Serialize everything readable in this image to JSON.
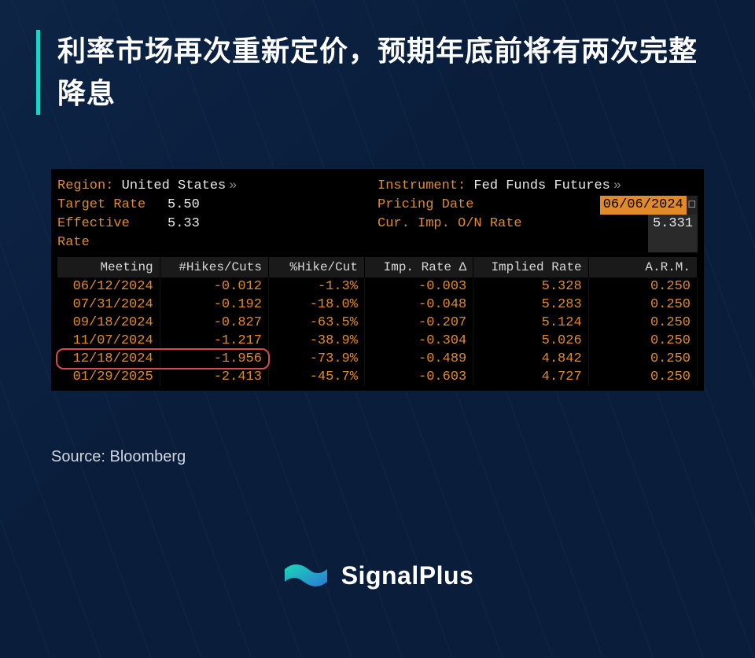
{
  "title": "利率市场再次重新定价，预期年底前将有两次完整降息",
  "source": "Source: Bloomberg",
  "brand": "SignalPlus",
  "colors": {
    "page_bg": "#0a1e3c",
    "accent_border": "#1dd3c4",
    "terminal_bg": "#000000",
    "terminal_label": "#e08a2a",
    "terminal_value": "#e8e8e8",
    "table_header_bg": "#1a1a1a",
    "table_header_fg": "#d8d8d8",
    "table_cell_fg": "#e08a2a",
    "highlight_border": "#d84a4a",
    "logo_grad_from": "#1bd8b5",
    "logo_grad_to": "#2a7ad6"
  },
  "terminal": {
    "region_label": "Region:",
    "region_value": "United States",
    "instrument_label": "Instrument:",
    "instrument_value": "Fed Funds Futures",
    "target_rate_label": "Target Rate",
    "target_rate_value": "5.50",
    "pricing_date_label": "Pricing Date",
    "pricing_date_value": "06/06/2024",
    "effective_rate_label": "Effective Rate",
    "effective_rate_value": "5.33",
    "cur_imp_label": "Cur. Imp. O/N Rate",
    "cur_imp_value": "5.331",
    "columns": [
      "Meeting",
      "#Hikes/Cuts",
      "%Hike/Cut",
      "Imp. Rate Δ",
      "Implied Rate",
      "A.R.M."
    ],
    "rows": [
      {
        "meeting": "06/12/2024",
        "hikes": "-0.012",
        "pct": "-1.3%",
        "delta": "-0.003",
        "impl": "5.328",
        "arm": "0.250"
      },
      {
        "meeting": "07/31/2024",
        "hikes": "-0.192",
        "pct": "-18.0%",
        "delta": "-0.048",
        "impl": "5.283",
        "arm": "0.250"
      },
      {
        "meeting": "09/18/2024",
        "hikes": "-0.827",
        "pct": "-63.5%",
        "delta": "-0.207",
        "impl": "5.124",
        "arm": "0.250"
      },
      {
        "meeting": "11/07/2024",
        "hikes": "-1.217",
        "pct": "-38.9%",
        "delta": "-0.304",
        "impl": "5.026",
        "arm": "0.250"
      },
      {
        "meeting": "12/18/2024",
        "hikes": "-1.956",
        "pct": "-73.9%",
        "delta": "-0.489",
        "impl": "4.842",
        "arm": "0.250"
      },
      {
        "meeting": "01/29/2025",
        "hikes": "-2.413",
        "pct": "-45.7%",
        "delta": "-0.603",
        "impl": "4.727",
        "arm": "0.250"
      }
    ],
    "highlight_row_index": 4,
    "highlight_cols": 2
  }
}
